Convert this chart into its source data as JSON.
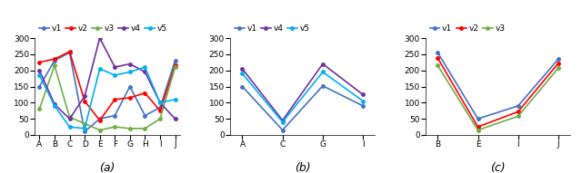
{
  "subplot_a": {
    "title": "(a)",
    "x_labels": [
      "A",
      "B",
      "C",
      "D",
      "E",
      "F",
      "G",
      "H",
      "I",
      "J"
    ],
    "ylim": [
      0,
      300
    ],
    "yticks": [
      0,
      50,
      100,
      150,
      200,
      250,
      300
    ],
    "series": {
      "v1": {
        "color": "#4472C4",
        "values": [
          150,
          230,
          255,
          10,
          50,
          60,
          150,
          60,
          85,
          230
        ]
      },
      "v2": {
        "color": "#FF0000",
        "values": [
          225,
          235,
          258,
          105,
          45,
          110,
          115,
          130,
          75,
          215
        ]
      },
      "v3": {
        "color": "#70AD47",
        "values": [
          80,
          215,
          55,
          35,
          15,
          25,
          20,
          20,
          50,
          210
        ]
      },
      "v4": {
        "color": "#7030A0",
        "values": [
          200,
          95,
          50,
          120,
          300,
          210,
          220,
          195,
          100,
          50
        ]
      },
      "v5": {
        "color": "#00B0F0",
        "values": [
          185,
          90,
          25,
          20,
          205,
          185,
          195,
          210,
          100,
          110
        ]
      }
    },
    "legend_order": [
      "v1",
      "v2",
      "v3",
      "v4",
      "v5"
    ]
  },
  "subplot_b": {
    "title": "(b)",
    "x_labels": [
      "A",
      "C",
      "G",
      "I"
    ],
    "ylim": [
      0,
      300
    ],
    "yticks": [
      0,
      50,
      100,
      150,
      200,
      250,
      300
    ],
    "series": {
      "v1": {
        "color": "#4472C4",
        "values": [
          150,
          15,
          152,
          90
        ]
      },
      "v4": {
        "color": "#7030A0",
        "values": [
          205,
          45,
          220,
          125
        ]
      },
      "v5": {
        "color": "#00B0F0",
        "values": [
          190,
          40,
          195,
          105
        ]
      }
    },
    "legend_order": [
      "v1",
      "v4",
      "v5"
    ]
  },
  "subplot_c": {
    "title": "(c)",
    "x_labels": [
      "B",
      "E",
      "I",
      "J"
    ],
    "ylim": [
      0,
      300
    ],
    "yticks": [
      0,
      50,
      100,
      150,
      200,
      250,
      300
    ],
    "series": {
      "v1": {
        "color": "#4472C4",
        "values": [
          255,
          50,
          90,
          235
        ]
      },
      "v2": {
        "color": "#FF0000",
        "values": [
          238,
          25,
          72,
          222
        ]
      },
      "v3": {
        "color": "#70AD47",
        "values": [
          215,
          15,
          58,
          207
        ]
      }
    },
    "legend_order": [
      "v1",
      "v2",
      "v3"
    ]
  },
  "line_width": 1.2,
  "marker": "o",
  "marker_size": 2.5,
  "legend_fontsize": 6.5,
  "tick_fontsize": 6.5,
  "title_fontsize": 9,
  "bg_color": "#FFFFFF"
}
